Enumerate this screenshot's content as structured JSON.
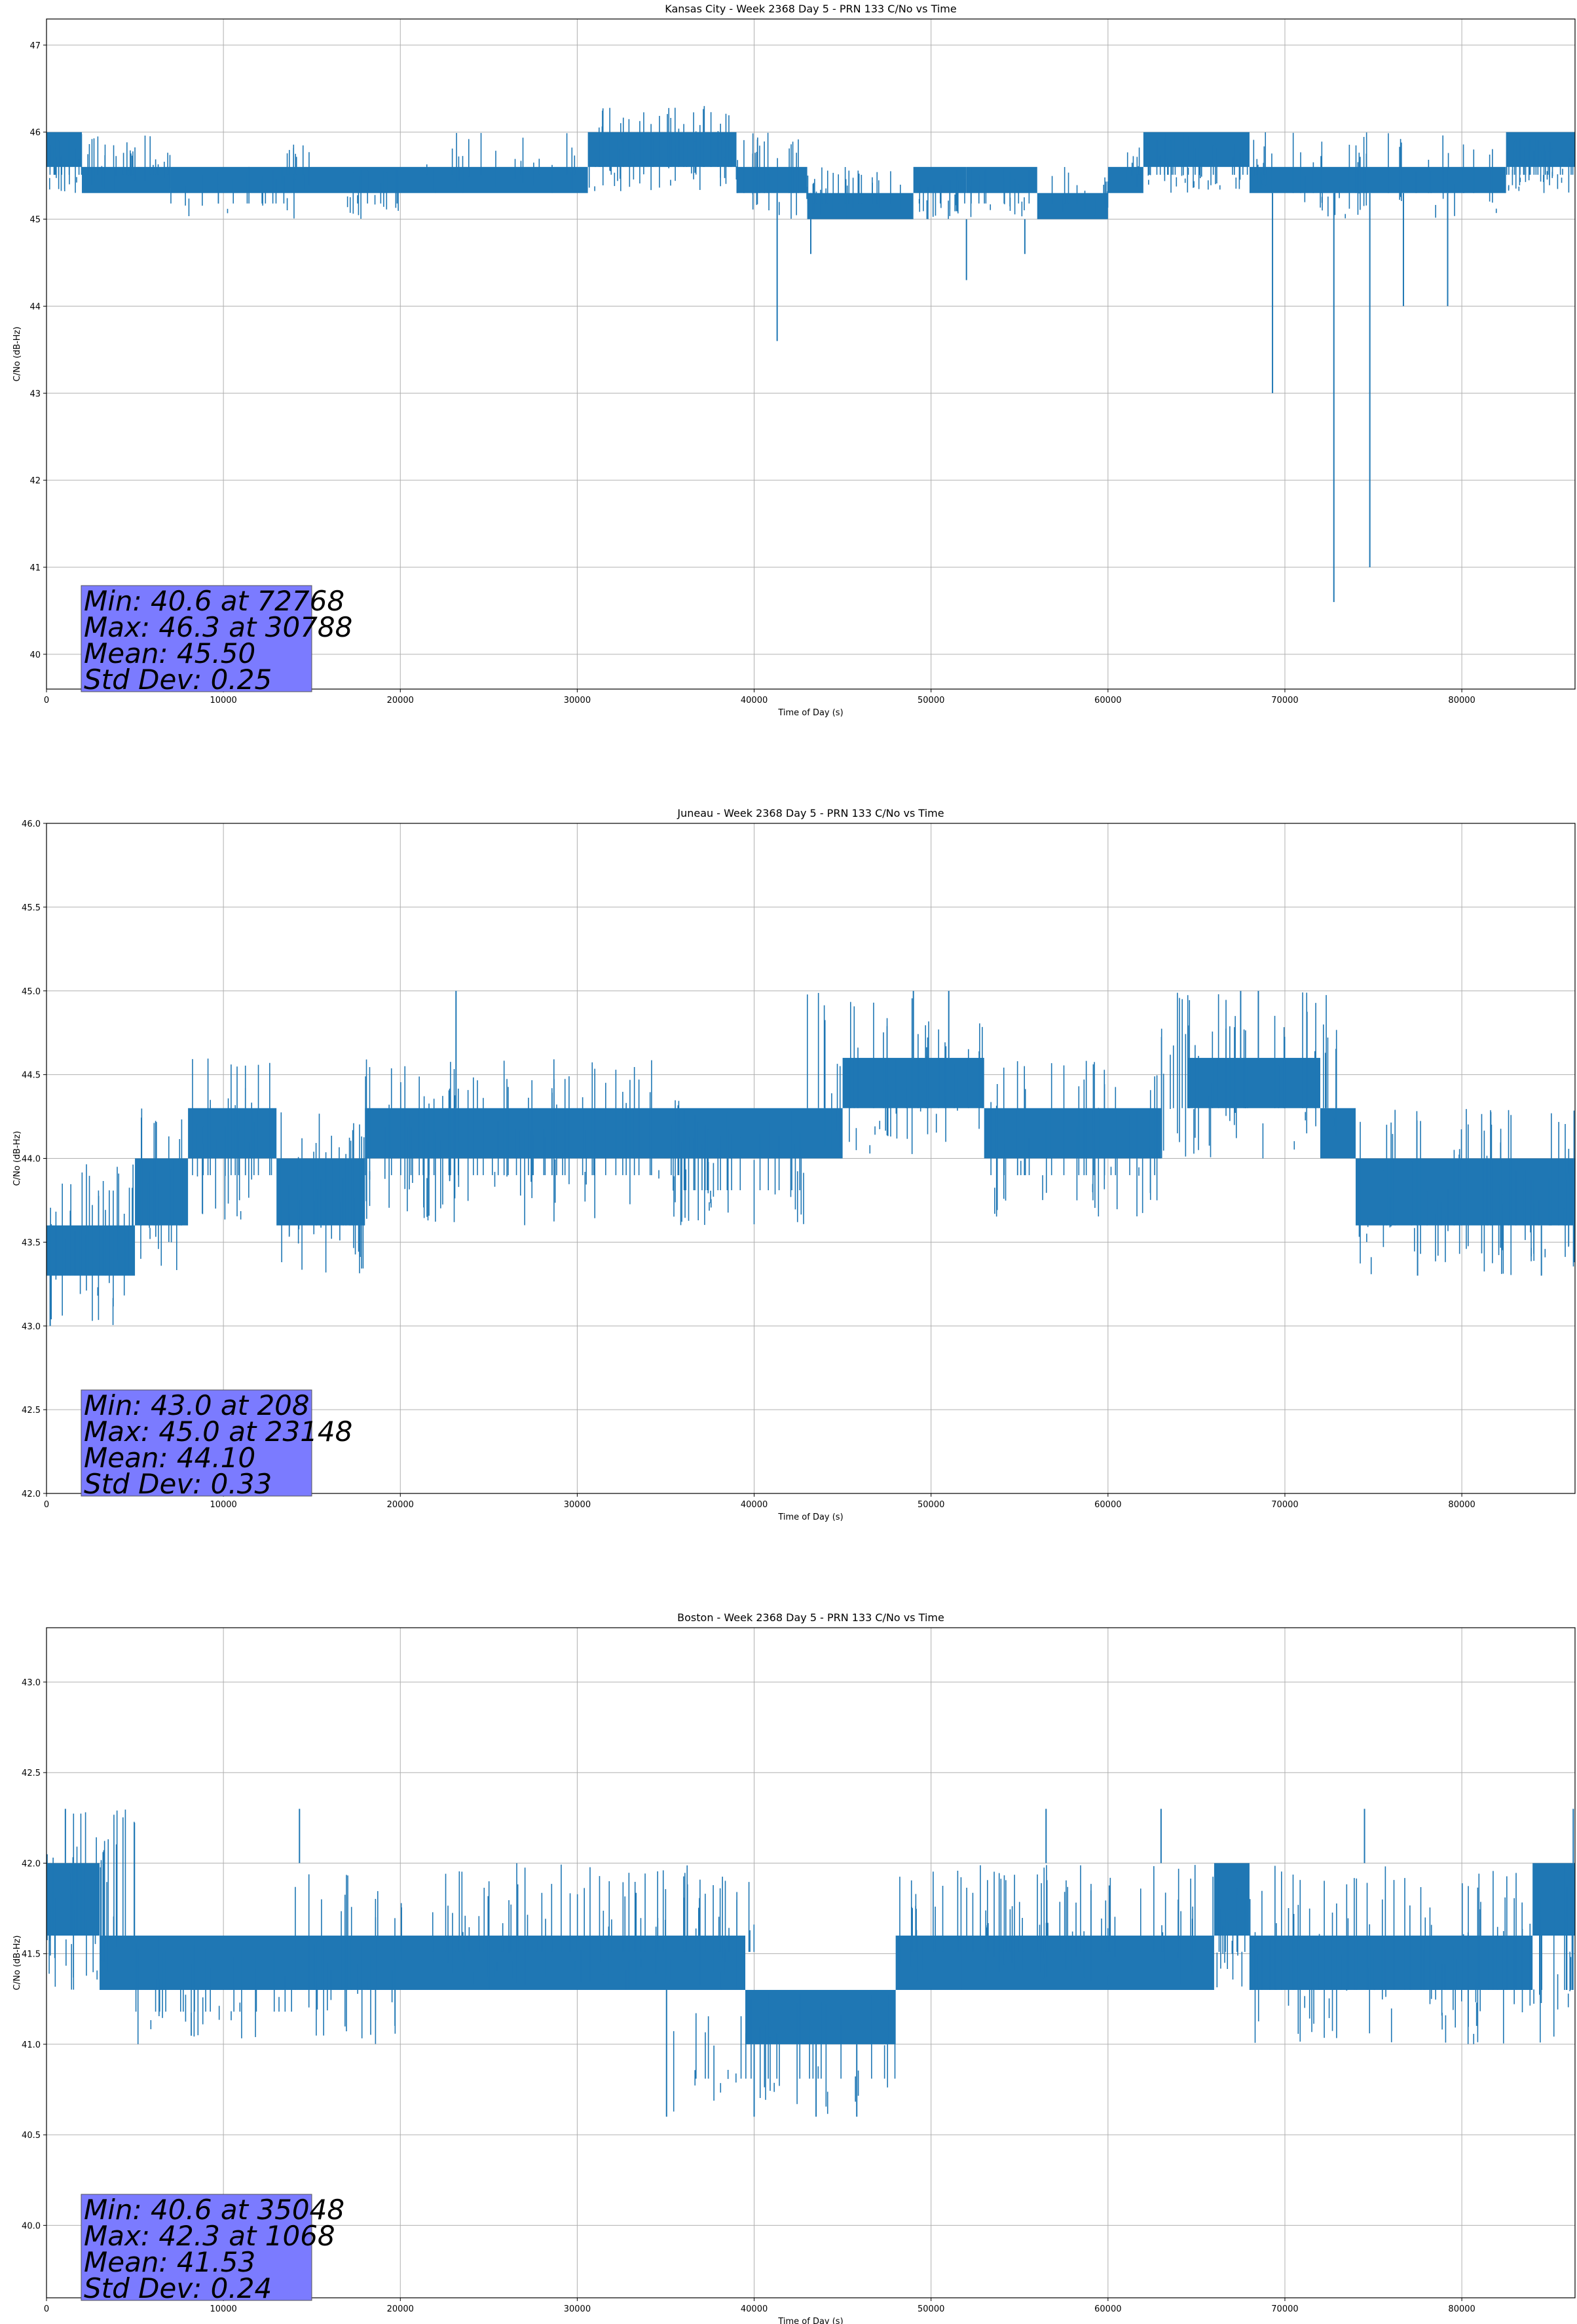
{
  "chart_data": [
    {
      "type": "line",
      "title": "Kansas City - Week 2368 Day 5 - PRN 133 C/No vs Time",
      "xlabel": "Time of Day (s)",
      "ylabel": "C/No (dB-Hz)",
      "xlim": [
        0,
        86400
      ],
      "ylim": [
        39.6,
        47.3
      ],
      "xticks": [
        0,
        10000,
        20000,
        30000,
        40000,
        50000,
        60000,
        70000,
        80000
      ],
      "yticks": [
        40,
        41,
        42,
        43,
        44,
        45,
        46,
        47
      ],
      "ytick_decimals": 0,
      "grid": true,
      "color": "#1f77b4",
      "base_segments": [
        {
          "x": [
            0,
            2000
          ],
          "lo": 45.6,
          "hi": 46.0
        },
        {
          "x": [
            2000,
            7000
          ],
          "lo": 45.3,
          "hi": 45.6
        },
        {
          "x": [
            7000,
            30600
          ],
          "lo": 45.3,
          "hi": 45.6
        },
        {
          "x": [
            30600,
            39000
          ],
          "lo": 45.6,
          "hi": 46.0
        },
        {
          "x": [
            39000,
            43000
          ],
          "lo": 45.3,
          "hi": 45.6
        },
        {
          "x": [
            43000,
            49000
          ],
          "lo": 45.0,
          "hi": 45.3
        },
        {
          "x": [
            49000,
            52000
          ],
          "lo": 45.3,
          "hi": 45.6
        },
        {
          "x": [
            52000,
            56000
          ],
          "lo": 45.3,
          "hi": 45.6
        },
        {
          "x": [
            56000,
            60000
          ],
          "lo": 45.0,
          "hi": 45.3
        },
        {
          "x": [
            60000,
            62000
          ],
          "lo": 45.3,
          "hi": 45.6
        },
        {
          "x": [
            62000,
            68000
          ],
          "lo": 45.6,
          "hi": 46.0
        },
        {
          "x": [
            68000,
            82500
          ],
          "lo": 45.3,
          "hi": 45.6
        },
        {
          "x": [
            82500,
            86400
          ],
          "lo": 45.6,
          "hi": 46.0
        }
      ],
      "noise_segments": [
        {
          "x": [
            0,
            7000
          ],
          "lo": 45.3,
          "hi": 46.0,
          "n": 45
        },
        {
          "x": [
            7000,
            14000
          ],
          "lo": 45.0,
          "hi": 45.6,
          "n": 18
        },
        {
          "x": [
            12500,
            15000
          ],
          "lo": 45.3,
          "hi": 46.0,
          "n": 10
        },
        {
          "x": [
            17000,
            20000
          ],
          "lo": 45.0,
          "hi": 45.6,
          "n": 14
        },
        {
          "x": [
            21000,
            30000
          ],
          "lo": 45.3,
          "hi": 46.0,
          "n": 20
        },
        {
          "x": [
            30600,
            39000
          ],
          "lo": 45.3,
          "hi": 46.3,
          "n": 55
        },
        {
          "x": [
            39000,
            43000
          ],
          "lo": 45.0,
          "hi": 46.0,
          "n": 20
        },
        {
          "x": [
            43000,
            60000
          ],
          "lo": 45.0,
          "hi": 45.6,
          "n": 70
        },
        {
          "x": [
            61000,
            69000
          ],
          "lo": 45.3,
          "hi": 46.0,
          "n": 60
        },
        {
          "x": [
            69000,
            82000
          ],
          "lo": 45.0,
          "hi": 46.0,
          "n": 40
        },
        {
          "x": [
            82500,
            86400
          ],
          "lo": 45.3,
          "hi": 46.0,
          "n": 40
        }
      ],
      "spikes": [
        {
          "x": 41300,
          "lo": 43.6,
          "hi": 45.3
        },
        {
          "x": 43200,
          "lo": 44.6,
          "hi": 45.3
        },
        {
          "x": 52000,
          "lo": 44.3,
          "hi": 45.0
        },
        {
          "x": 55300,
          "lo": 44.6,
          "hi": 45.0
        },
        {
          "x": 69300,
          "lo": 43.0,
          "hi": 45.3
        },
        {
          "x": 72768,
          "lo": 40.6,
          "hi": 45.3
        },
        {
          "x": 74800,
          "lo": 41.0,
          "hi": 45.3
        },
        {
          "x": 76700,
          "lo": 44.0,
          "hi": 45.3
        },
        {
          "x": 79200,
          "lo": 44.0,
          "hi": 45.3
        }
      ],
      "stats": [
        "Min: 40.6 at 72768",
        "Max: 46.3 at 30788",
        "Mean: 45.50",
        "Std Dev: 0.25"
      ],
      "stats_box_color": "#7b7bff"
    },
    {
      "type": "line",
      "title": "Juneau - Week 2368 Day 5 - PRN 133 C/No vs Time",
      "xlabel": "Time of Day (s)",
      "ylabel": "C/No (dB-Hz)",
      "xlim": [
        0,
        86400
      ],
      "ylim": [
        42.0,
        46.0
      ],
      "xticks": [
        0,
        10000,
        20000,
        30000,
        40000,
        50000,
        60000,
        70000,
        80000
      ],
      "yticks": [
        42.0,
        42.5,
        43.0,
        43.5,
        44.0,
        44.5,
        45.0,
        45.5,
        46.0
      ],
      "ytick_decimals": 1,
      "grid": true,
      "color": "#1f77b4",
      "base_segments": [
        {
          "x": [
            0,
            5000
          ],
          "lo": 43.3,
          "hi": 43.6
        },
        {
          "x": [
            5000,
            8000
          ],
          "lo": 43.6,
          "hi": 44.0
        },
        {
          "x": [
            8000,
            13000
          ],
          "lo": 44.0,
          "hi": 44.3
        },
        {
          "x": [
            13000,
            18000
          ],
          "lo": 43.6,
          "hi": 44.0
        },
        {
          "x": [
            18000,
            45000
          ],
          "lo": 44.0,
          "hi": 44.3
        },
        {
          "x": [
            45000,
            53000
          ],
          "lo": 44.3,
          "hi": 44.6
        },
        {
          "x": [
            53000,
            63000
          ],
          "lo": 44.0,
          "hi": 44.3
        },
        {
          "x": [
            64500,
            72000
          ],
          "lo": 44.3,
          "hi": 44.6
        },
        {
          "x": [
            72000,
            74000
          ],
          "lo": 44.0,
          "hi": 44.3
        },
        {
          "x": [
            74000,
            86400
          ],
          "lo": 43.6,
          "hi": 44.0
        }
      ],
      "noise_segments": [
        {
          "x": [
            0,
            5000
          ],
          "lo": 43.0,
          "hi": 44.0,
          "n": 30
        },
        {
          "x": [
            5000,
            8000
          ],
          "lo": 43.3,
          "hi": 44.3,
          "n": 20
        },
        {
          "x": [
            8000,
            13000
          ],
          "lo": 43.6,
          "hi": 44.6,
          "n": 25
        },
        {
          "x": [
            13000,
            18000
          ],
          "lo": 43.3,
          "hi": 44.3,
          "n": 30
        },
        {
          "x": [
            18000,
            36000
          ],
          "lo": 43.6,
          "hi": 44.6,
          "n": 90
        },
        {
          "x": [
            36000,
            43000
          ],
          "lo": 43.6,
          "hi": 44.3,
          "n": 35
        },
        {
          "x": [
            43000,
            53000
          ],
          "lo": 44.0,
          "hi": 45.0,
          "n": 45
        },
        {
          "x": [
            53000,
            63000
          ],
          "lo": 43.6,
          "hi": 44.6,
          "n": 40
        },
        {
          "x": [
            63000,
            73000
          ],
          "lo": 44.0,
          "hi": 45.0,
          "n": 50
        },
        {
          "x": [
            74000,
            86400
          ],
          "lo": 43.3,
          "hi": 44.3,
          "n": 70
        }
      ],
      "spikes": [
        {
          "x": 208,
          "lo": 43.0,
          "hi": 43.6
        },
        {
          "x": 23148,
          "lo": 44.3,
          "hi": 45.0
        },
        {
          "x": 49000,
          "lo": 44.6,
          "hi": 45.0
        },
        {
          "x": 51000,
          "lo": 44.6,
          "hi": 45.0
        },
        {
          "x": 67500,
          "lo": 44.6,
          "hi": 45.0
        },
        {
          "x": 68500,
          "lo": 44.6,
          "hi": 45.0
        },
        {
          "x": 77500,
          "lo": 43.3,
          "hi": 43.6
        },
        {
          "x": 84500,
          "lo": 43.3,
          "hi": 43.6
        }
      ],
      "stats": [
        "Min: 43.0 at 208",
        "Max: 45.0 at 23148",
        "Mean: 44.10",
        "Std Dev: 0.33"
      ],
      "stats_box_color": "#7b7bff"
    },
    {
      "type": "line",
      "title": "Boston - Week 2368 Day 5 - PRN 133 C/No vs Time",
      "xlabel": "Time of Day (s)",
      "ylabel": "C/No (dB-Hz)",
      "xlim": [
        0,
        86400
      ],
      "ylim": [
        39.6,
        43.3
      ],
      "xticks": [
        0,
        10000,
        20000,
        30000,
        40000,
        50000,
        60000,
        70000,
        80000
      ],
      "yticks": [
        40.0,
        40.5,
        41.0,
        41.5,
        42.0,
        42.5,
        43.0
      ],
      "ytick_decimals": 1,
      "grid": true,
      "color": "#1f77b4",
      "base_segments": [
        {
          "x": [
            0,
            3000
          ],
          "lo": 41.6,
          "hi": 42.0
        },
        {
          "x": [
            3000,
            39500
          ],
          "lo": 41.3,
          "hi": 41.6
        },
        {
          "x": [
            39500,
            48000
          ],
          "lo": 41.0,
          "hi": 41.3
        },
        {
          "x": [
            48000,
            66000
          ],
          "lo": 41.3,
          "hi": 41.6
        },
        {
          "x": [
            66000,
            68000
          ],
          "lo": 41.6,
          "hi": 42.0
        },
        {
          "x": [
            68000,
            84000
          ],
          "lo": 41.3,
          "hi": 41.6
        },
        {
          "x": [
            84000,
            86400
          ],
          "lo": 41.6,
          "hi": 42.0
        }
      ],
      "noise_segments": [
        {
          "x": [
            0,
            5000
          ],
          "lo": 41.3,
          "hi": 42.3,
          "n": 40
        },
        {
          "x": [
            5000,
            14000
          ],
          "lo": 41.0,
          "hi": 41.6,
          "n": 30
        },
        {
          "x": [
            14000,
            20000
          ],
          "lo": 41.0,
          "hi": 42.0,
          "n": 25
        },
        {
          "x": [
            20000,
            40000
          ],
          "lo": 41.3,
          "hi": 42.0,
          "n": 90
        },
        {
          "x": [
            35000,
            48000
          ],
          "lo": 40.6,
          "hi": 41.3,
          "n": 35
        },
        {
          "x": [
            48000,
            68000
          ],
          "lo": 41.3,
          "hi": 42.0,
          "n": 90
        },
        {
          "x": [
            68000,
            86400
          ],
          "lo": 41.0,
          "hi": 42.0,
          "n": 90
        }
      ],
      "spikes": [
        {
          "x": 1068,
          "lo": 42.0,
          "hi": 42.3
        },
        {
          "x": 14300,
          "lo": 42.0,
          "hi": 42.3
        },
        {
          "x": 35048,
          "lo": 40.6,
          "hi": 41.3
        },
        {
          "x": 40000,
          "lo": 40.6,
          "hi": 41.0
        },
        {
          "x": 43500,
          "lo": 40.6,
          "hi": 41.0
        },
        {
          "x": 45800,
          "lo": 40.6,
          "hi": 41.0
        },
        {
          "x": 56500,
          "lo": 42.0,
          "hi": 42.3
        },
        {
          "x": 63000,
          "lo": 42.0,
          "hi": 42.3
        },
        {
          "x": 74500,
          "lo": 42.0,
          "hi": 42.3
        },
        {
          "x": 86300,
          "lo": 42.0,
          "hi": 42.3
        }
      ],
      "stats": [
        "Min: 40.6 at 35048",
        "Max: 42.3 at 1068",
        "Mean: 41.53",
        "Std Dev: 0.24"
      ],
      "stats_box_color": "#7b7bff"
    }
  ]
}
